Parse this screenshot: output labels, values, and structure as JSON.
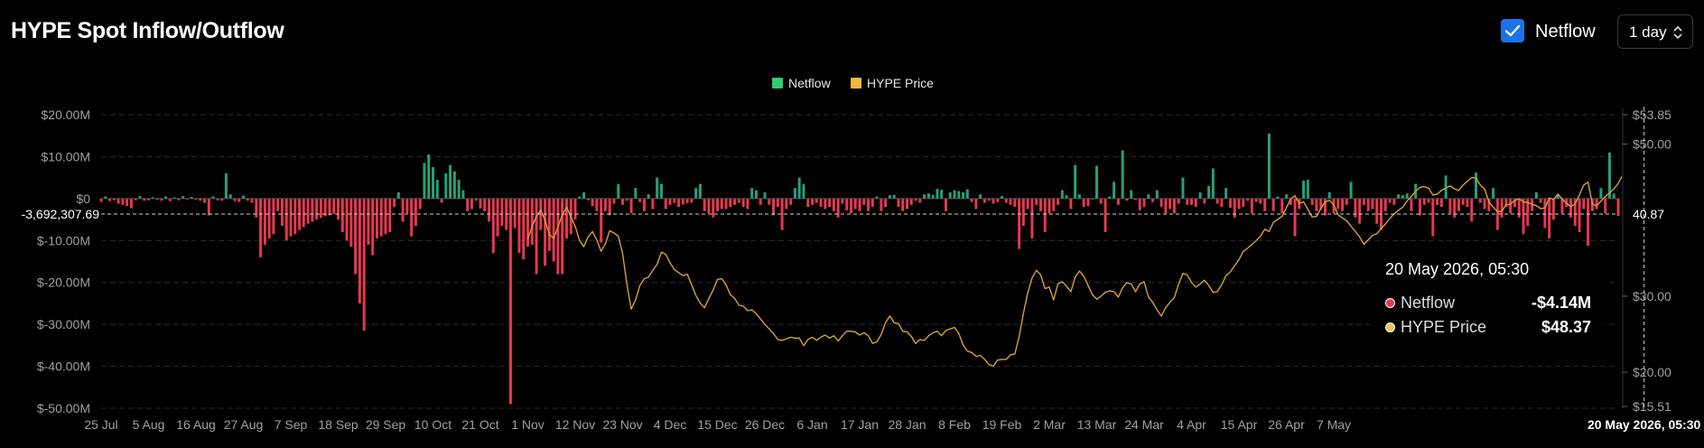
{
  "header": {
    "title": "HYPE Spot Inflow/Outflow",
    "netflow_toggle_label": "Netflow",
    "netflow_toggle_checked": true,
    "interval_selected": "1 day"
  },
  "colors": {
    "inflow": "#26a17b",
    "outflow": "#e8384f",
    "price": "#d4a13a",
    "legend_netflow": "#2ecc71",
    "legend_price": "#f0b93b"
  },
  "tooltip": {
    "date": "20 May 2026, 05:30",
    "rows": [
      {
        "name": "Netflow",
        "value": "-$4.14M",
        "color": "#e8384f"
      },
      {
        "name": "HYPE Price",
        "value": "$48.37",
        "color": "#f0c060"
      }
    ]
  },
  "chart_data": {
    "type": "bar",
    "legend": [
      {
        "name": "Netflow",
        "color": "#2ecc71"
      },
      {
        "name": "HYPE Price",
        "color": "#f0b93b"
      }
    ],
    "x_tick_labels": [
      "25 Jul",
      "5 Aug",
      "16 Aug",
      "27 Aug",
      "7 Sep",
      "18 Sep",
      "29 Sep",
      "10 Oct",
      "21 Oct",
      "1 Nov",
      "12 Nov",
      "23 Nov",
      "4 Dec",
      "15 Dec",
      "26 Dec",
      "6 Jan",
      "17 Jan",
      "28 Jan",
      "8 Feb",
      "19 Feb",
      "2 Mar",
      "13 Mar",
      "24 Mar",
      "4 Apr",
      "15 Apr",
      "26 Apr",
      "7 May"
    ],
    "x_hover_label": "20 May 2026, 05:30",
    "left_axis": {
      "label": "Netflow",
      "ticks": [
        "$20.00M",
        "$10.00M",
        "$0",
        "$-10.00M",
        "$-20.00M",
        "$-30.00M",
        "$-40.00M",
        "$-50.00M"
      ],
      "tick_values": [
        20000000,
        10000000,
        0,
        -10000000,
        -20000000,
        -30000000,
        -40000000,
        -50000000
      ],
      "ylim": [
        -50000000,
        20000000
      ],
      "crosshair_label": "-3,692,307.69",
      "crosshair_value": -3692307.69
    },
    "right_axis": {
      "label": "HYPE Price",
      "ticks": [
        "$53.85",
        "$50.00",
        "$30.00",
        "$20.00",
        "$15.51"
      ],
      "tick_values": [
        53.85,
        50,
        30,
        20,
        15.51
      ],
      "ylim": [
        15.51,
        53.85
      ],
      "crosshair_label": "40.87",
      "crosshair_value": 40.87
    },
    "netflow_series": {
      "name": "Netflow",
      "unit": "USD millions",
      "start_date": "2025-07-25",
      "values": [
        -0.8,
        0.5,
        -0.6,
        -0.4,
        -1.2,
        -1.5,
        -1.8,
        -2.3,
        -0.4,
        0.6,
        -0.5,
        -0.4,
        0.3,
        -0.3,
        -0.5,
        0.5,
        -0.6,
        0.3,
        -0.4,
        0.6,
        -0.2,
        0.4,
        -0.3,
        -0.5,
        -1,
        -4,
        0.5,
        -0.4,
        -0.5,
        6,
        1,
        -0.6,
        -0.8,
        0.7,
        -0.5,
        -1,
        -4.5,
        -14,
        -11,
        -9.5,
        -8.5,
        -3,
        -6.5,
        -10,
        -9,
        -8.5,
        -7.5,
        -6.8,
        -6,
        -5.5,
        -5,
        -4.6,
        -4.2,
        -4,
        -3.6,
        -5,
        -8,
        -10,
        -11.5,
        -18,
        -25,
        -31.5,
        -11,
        -13.5,
        -9.5,
        -9,
        -8.5,
        -8,
        -2,
        1.5,
        -5.5,
        -3.5,
        -9,
        -6.5,
        -2.5,
        8.5,
        10.5,
        7.5,
        4.5,
        -1,
        6,
        8,
        6.5,
        4.5,
        2,
        -3,
        -2.5,
        -0.5,
        -2.3,
        -3,
        -5.5,
        -13,
        -9,
        -6.5,
        -7.5,
        -49,
        -7,
        -13,
        -14.5,
        -11.5,
        -11,
        -18,
        -7.5,
        -16,
        -12.5,
        -15,
        -18,
        -18,
        -9.5,
        -8.5,
        -5,
        0.5,
        1.5,
        -0.4,
        -1.8,
        -3,
        -10.5,
        -3,
        -4,
        -1.2,
        3.5,
        -1.5,
        -0.5,
        -3.5,
        2.5,
        -0.8,
        -3,
        1,
        -2.5,
        5,
        3.5,
        -2.5,
        -1.5,
        -1,
        -2,
        -1.4,
        -1.1,
        -1,
        2.5,
        3.5,
        -3,
        -3.5,
        -4.5,
        -3,
        -2.5,
        -2.5,
        -2,
        -1.5,
        -1,
        -2,
        -2.5,
        2.5,
        2,
        -1.5,
        1.5,
        -1.5,
        -4,
        -2,
        -7.5,
        -2.5,
        -1.5,
        2.5,
        5,
        3.5,
        -2,
        -1.5,
        -1,
        -2,
        -2.5,
        -2,
        -3,
        -4.5,
        -1.2,
        -2.8,
        -3.5,
        -2.5,
        -3,
        -1.5,
        -3,
        -2,
        0.5,
        -3,
        -2,
        0.8,
        0.9,
        -2,
        -3,
        -2.5,
        -1.5,
        -0.5,
        -1,
        1,
        1.2,
        0.9,
        2.3,
        2.1,
        -3,
        1.5,
        2,
        1.8,
        1.5,
        2.2,
        -0.8,
        -2.5,
        1,
        -1,
        -0.5,
        -1.2,
        -0.8,
        0.6,
        -1,
        -1.5,
        -2,
        -12,
        -6.5,
        -2.5,
        -9.5,
        -1.5,
        -3,
        -8,
        -3.5,
        -3,
        -1.5,
        2,
        0.8,
        -2.5,
        8,
        1,
        -2,
        -1.8,
        0,
        7.8,
        -1.2,
        -8,
        0.5,
        4,
        -1.5,
        11.5,
        -0.5,
        2,
        -0.3,
        -2.8,
        -2,
        1,
        -0.8,
        2,
        -2,
        -3.5,
        -2.5,
        -3.5,
        -1.2,
        5,
        -1.5,
        -1.5,
        -2,
        1.5,
        -1.2,
        3,
        7.2,
        -1.2,
        -2,
        2.5,
        -2.2,
        -4.5,
        -2.5,
        -2,
        -0.5,
        -3.5,
        -0.8,
        -1.2,
        -3,
        15.5,
        -3,
        0.5,
        -3.5,
        1,
        -1.5,
        -9,
        -2.5,
        4.3,
        4.5,
        -1.5,
        -3,
        -2.5,
        -4,
        1.5,
        -3.5,
        -2.5,
        -3,
        -1.5,
        4,
        -4.5,
        -6,
        -1.5,
        -3,
        -2.5,
        -6,
        -7.5,
        -3,
        -1,
        -1.5,
        1,
        0.8,
        1.2,
        -3,
        3.5,
        -4,
        -1.5,
        -1,
        -9,
        -1.5,
        -2,
        5.5,
        -3.5,
        -4.5,
        -3,
        -1.5,
        -2,
        -5.5,
        6.2,
        -1,
        -2.5,
        -3,
        2.5,
        -7.5,
        -4.5,
        -2,
        -3.5,
        -2,
        -4.5,
        -8.5,
        -6.5,
        -3,
        1.5,
        -1,
        -7,
        -9.5,
        -5,
        1,
        -3.5,
        -2,
        -4.5,
        -6.5,
        -8,
        -2.5,
        -11.5,
        -3,
        -2.5,
        2.5,
        -3.5,
        11,
        1.2,
        -4.14
      ]
    },
    "price_series": {
      "name": "HYPE Price",
      "unit": "USD",
      "start_date": "2025-11-01",
      "values": [
        37.5,
        39.2,
        40.5,
        41.3,
        40,
        38.1,
        37.6,
        39.1,
        40.7,
        41.7,
        40.4,
        39.2,
        37.3,
        36.5,
        37.8,
        38.5,
        37.4,
        35.9,
        36.9,
        38.6,
        38.3,
        37.9,
        35.6,
        31.5,
        28.3,
        29.5,
        31.4,
        32.3,
        32.5,
        33.4,
        34.2,
        35.8,
        35.5,
        34.4,
        33.5,
        33.1,
        32.7,
        32.9,
        31.5,
        30.1,
        29.1,
        28.5,
        29.7,
        30.8,
        32.2,
        32.3,
        31.5,
        30.2,
        29.7,
        28.8,
        28.7,
        28.1,
        28.2,
        27.7,
        27,
        26.3,
        25.7,
        25.1,
        24.3,
        24.2,
        24.4,
        24.6,
        24.5,
        24.5,
        23.5,
        24.3,
        24.6,
        24.2,
        24.6,
        24.9,
        24.5,
        24.8,
        24.1,
        24.8,
        25.4,
        25.4,
        25.3,
        24.9,
        25.2,
        24.8,
        23.8,
        24,
        25,
        26.5,
        27.4,
        26.5,
        26.4,
        25.4,
        25.3,
        24.7,
        23.8,
        24.3,
        24.2,
        24.8,
        25.2,
        25.4,
        24.8,
        25.5,
        25.7,
        25.9,
        25.1,
        23.6,
        22.8,
        22.6,
        22.1,
        22.2,
        21.7,
        21,
        20.8,
        21.6,
        21.7,
        21.7,
        22.3,
        22.4,
        24.7,
        27.8,
        30.4,
        32.4,
        33.4,
        32.8,
        31,
        31.2,
        29.5,
        31.6,
        31.9,
        31.3,
        30.6,
        32.5,
        33.3,
        32.6,
        31.4,
        30.2,
        29.6,
        30,
        30.5,
        30.7,
        30.6,
        29.9,
        31.1,
        31.8,
        31.6,
        30.6,
        31.6,
        31.9,
        29.9,
        29.2,
        28.2,
        27.4,
        28.5,
        29.2,
        29.8,
        31.6,
        33,
        32.8,
        31.8,
        31.2,
        31.6,
        32.1,
        31.4,
        30.5,
        30.6,
        31.5,
        32.7,
        33.2,
        34,
        34.8,
        35.9,
        36.3,
        36.8,
        37.3,
        37.9,
        38.8,
        38.5,
        39.7,
        40.1,
        40.5,
        41.6,
        42.8,
        43.2,
        42.2,
        42.4,
        41.4,
        40.4,
        40.5,
        41.5,
        42.4,
        42.6,
        42,
        40.7,
        40.3,
        39.9,
        39.2,
        38.5,
        37.8,
        36.8,
        37.4,
        38,
        38.2,
        38.9,
        39.5,
        40.2,
        40.8,
        41.3,
        41.7,
        42.5,
        43.1,
        43.8,
        44.3,
        44.4,
        44.2,
        43.3,
        43.4,
        43.9,
        44.2,
        44.5,
        44.1,
        43.9,
        44.6,
        45.1,
        45.6,
        45.5,
        44.6,
        44.1,
        42.4,
        41.7,
        41.1,
        41.2,
        42,
        42.1,
        42.6,
        42.8,
        42.4,
        42.3,
        42.1,
        41.9,
        41.5,
        41.6,
        42.9,
        42.7,
        43.4,
        42.8,
        42.2,
        41.8,
        42.1,
        43.3,
        44.6,
        45,
        42.1,
        41.9,
        42.5,
        43.1,
        43.6,
        44.1,
        44.8,
        45.9,
        46.8,
        47.6,
        48.2,
        48.6,
        48.37
      ]
    }
  }
}
